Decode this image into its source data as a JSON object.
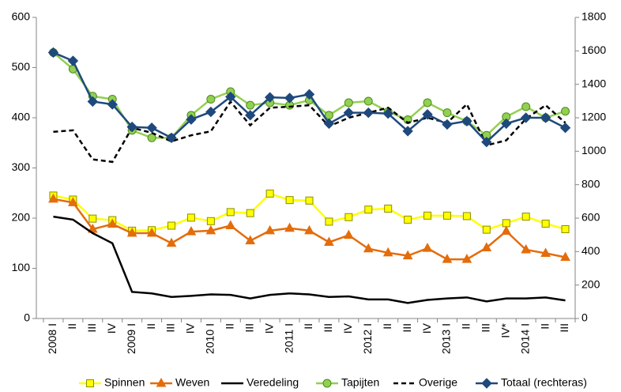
{
  "chart_data": {
    "type": "line",
    "categories": [
      "2008 I",
      "II",
      "III",
      "IV",
      "2009 I",
      "II",
      "III",
      "IV",
      "2010 I",
      "II",
      "III",
      "IV",
      "2011 I",
      "II",
      "III",
      "IV",
      "2012 I",
      "II",
      "III",
      "IV",
      "2013 I",
      "II",
      "III",
      "IV*",
      "2014 I",
      "II",
      "III"
    ],
    "ylim": [
      0,
      600
    ],
    "yticks": [
      0,
      100,
      200,
      300,
      400,
      500,
      600
    ],
    "y2lim": [
      0,
      1800
    ],
    "y2ticks": [
      0,
      200,
      400,
      600,
      800,
      1000,
      1200,
      1400,
      1600,
      1800
    ],
    "grid": false,
    "legend": "bottom",
    "series": [
      {
        "name": "Spinnen",
        "color": "#ffff00",
        "marker": "square",
        "linestyle": "solid",
        "values": [
          245,
          237,
          199,
          196,
          175,
          176,
          185,
          201,
          194,
          212,
          210,
          249,
          236,
          235,
          193,
          202,
          217,
          219,
          197,
          205,
          205,
          204,
          177,
          190,
          203,
          189,
          178
        ]
      },
      {
        "name": "Weven",
        "color": "#e46c0a",
        "marker": "triangle",
        "linestyle": "solid",
        "values": [
          238,
          231,
          178,
          188,
          170,
          170,
          150,
          173,
          175,
          185,
          155,
          175,
          180,
          175,
          152,
          166,
          139,
          131,
          125,
          140,
          118,
          118,
          141,
          174,
          137,
          130,
          122
        ]
      },
      {
        "name": "Veredeling",
        "color": "#000000",
        "marker": "none",
        "linestyle": "solid",
        "values": [
          203,
          197,
          170,
          150,
          53,
          50,
          43,
          45,
          48,
          47,
          40,
          47,
          50,
          48,
          43,
          44,
          38,
          38,
          31,
          37,
          40,
          42,
          34,
          40,
          40,
          42,
          36
        ]
      },
      {
        "name": "Tapijten",
        "color": "#92d050",
        "marker": "circle",
        "linestyle": "solid",
        "values": [
          530,
          497,
          443,
          437,
          375,
          360,
          360,
          405,
          437,
          452,
          425,
          430,
          425,
          435,
          405,
          430,
          433,
          412,
          396,
          430,
          410,
          393,
          365,
          402,
          422,
          400,
          413
        ]
      },
      {
        "name": "Overige",
        "color": "#000000",
        "marker": "none",
        "linestyle": "dashed",
        "values": [
          372,
          375,
          317,
          312,
          380,
          370,
          353,
          365,
          373,
          432,
          385,
          420,
          422,
          425,
          383,
          400,
          410,
          420,
          390,
          400,
          390,
          427,
          345,
          355,
          398,
          425,
          390
        ]
      },
      {
        "name": "Totaal (rechteras)",
        "color": "#1f497d",
        "marker": "diamond",
        "linestyle": "solid",
        "axis": "y2",
        "values": [
          1590,
          1540,
          1297,
          1280,
          1145,
          1140,
          1080,
          1190,
          1235,
          1325,
          1215,
          1322,
          1318,
          1340,
          1165,
          1230,
          1230,
          1225,
          1120,
          1220,
          1160,
          1180,
          1055,
          1165,
          1200,
          1200,
          1140
        ]
      }
    ]
  }
}
